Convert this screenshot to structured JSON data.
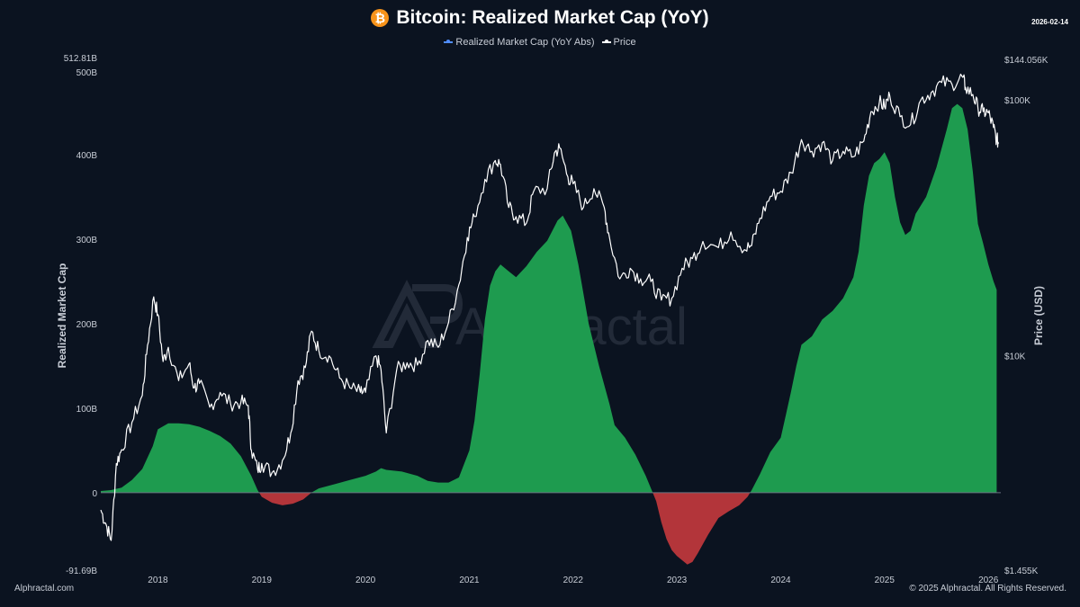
{
  "header": {
    "logo_glyph": "₿",
    "title": "Bitcoin: Realized Market Cap (YoY)",
    "date": "2026-02-14"
  },
  "legend": [
    {
      "label": "Realized Market Cap (YoY Abs)",
      "color": "#4f8cff"
    },
    {
      "label": "Price",
      "color": "#ffffff"
    }
  ],
  "watermark": {
    "text": "Alphractal",
    "icon_name": "alphractal-logo-icon"
  },
  "footer": {
    "left": "Alphractal.com",
    "right": "© 2025 Alphractal. All Rights Reserved."
  },
  "colors": {
    "background": "#0b1320",
    "positive_fill": "#1e9b4f",
    "negative_fill": "#b3353a",
    "price_line": "#ffffff",
    "axis_text": "#c8cdd6"
  },
  "chart_data": {
    "type": "area",
    "title": "Bitcoin: Realized Market Cap (YoY)",
    "ylabel_left": "Realized Market Cap",
    "ylabel_right": "Price (USD)",
    "left_axis": {
      "min": -91.69,
      "max": 512.81,
      "unit": "B",
      "ticks": [
        {
          "value": -91.69,
          "label": "-91.69B"
        },
        {
          "value": 0,
          "label": "0"
        },
        {
          "value": 100,
          "label": "100B"
        },
        {
          "value": 200,
          "label": "200B"
        },
        {
          "value": 300,
          "label": "300B"
        },
        {
          "value": 400,
          "label": "400B"
        },
        {
          "value": 500,
          "label": "500B"
        },
        {
          "value": 512.81,
          "label": "512.81B"
        }
      ]
    },
    "right_axis": {
      "scale": "log",
      "min": 1455,
      "max": 144056,
      "ticks": [
        {
          "value": 1455,
          "label": "$1.455K"
        },
        {
          "value": 10000,
          "label": "$10K"
        },
        {
          "value": 100000,
          "label": "$100K"
        },
        {
          "value": 144056,
          "label": "$144.056K"
        }
      ]
    },
    "x_axis": {
      "min": 2017.45,
      "max": 2026.12,
      "ticks": [
        {
          "value": 2018,
          "label": "2018"
        },
        {
          "value": 2019,
          "label": "2019"
        },
        {
          "value": 2020,
          "label": "2020"
        },
        {
          "value": 2021,
          "label": "2021"
        },
        {
          "value": 2022,
          "label": "2022"
        },
        {
          "value": 2023,
          "label": "2023"
        },
        {
          "value": 2024,
          "label": "2024"
        },
        {
          "value": 2025,
          "label": "2025"
        },
        {
          "value": 2026,
          "label": "2026"
        }
      ]
    },
    "grid": false,
    "legend_position": "top-center",
    "series": [
      {
        "name": "Realized Market Cap (YoY Abs)",
        "axis": "left",
        "points": [
          [
            2017.45,
            2
          ],
          [
            2017.55,
            3
          ],
          [
            2017.65,
            6
          ],
          [
            2017.75,
            15
          ],
          [
            2017.85,
            28
          ],
          [
            2017.95,
            55
          ],
          [
            2018.0,
            75
          ],
          [
            2018.1,
            82
          ],
          [
            2018.2,
            82
          ],
          [
            2018.3,
            81
          ],
          [
            2018.4,
            78
          ],
          [
            2018.5,
            73
          ],
          [
            2018.6,
            67
          ],
          [
            2018.7,
            58
          ],
          [
            2018.8,
            43
          ],
          [
            2018.9,
            20
          ],
          [
            2018.96,
            3
          ],
          [
            2019.0,
            -5
          ],
          [
            2019.1,
            -12
          ],
          [
            2019.2,
            -15
          ],
          [
            2019.3,
            -13
          ],
          [
            2019.4,
            -8
          ],
          [
            2019.48,
            0
          ],
          [
            2019.55,
            5
          ],
          [
            2019.7,
            10
          ],
          [
            2019.85,
            15
          ],
          [
            2020.0,
            20
          ],
          [
            2020.1,
            25
          ],
          [
            2020.15,
            29
          ],
          [
            2020.2,
            27
          ],
          [
            2020.35,
            25
          ],
          [
            2020.5,
            20
          ],
          [
            2020.6,
            14
          ],
          [
            2020.7,
            12
          ],
          [
            2020.8,
            12
          ],
          [
            2020.9,
            18
          ],
          [
            2021.0,
            50
          ],
          [
            2021.05,
            85
          ],
          [
            2021.1,
            140
          ],
          [
            2021.15,
            205
          ],
          [
            2021.2,
            245
          ],
          [
            2021.25,
            262
          ],
          [
            2021.3,
            270
          ],
          [
            2021.38,
            262
          ],
          [
            2021.45,
            255
          ],
          [
            2021.55,
            268
          ],
          [
            2021.65,
            285
          ],
          [
            2021.75,
            298
          ],
          [
            2021.85,
            322
          ],
          [
            2021.9,
            328
          ],
          [
            2021.98,
            310
          ],
          [
            2022.05,
            270
          ],
          [
            2022.15,
            200
          ],
          [
            2022.25,
            150
          ],
          [
            2022.35,
            105
          ],
          [
            2022.4,
            80
          ],
          [
            2022.5,
            65
          ],
          [
            2022.6,
            45
          ],
          [
            2022.7,
            20
          ],
          [
            2022.75,
            5
          ],
          [
            2022.8,
            -10
          ],
          [
            2022.85,
            -35
          ],
          [
            2022.9,
            -55
          ],
          [
            2022.95,
            -68
          ],
          [
            2023.0,
            -75
          ],
          [
            2023.05,
            -80
          ],
          [
            2023.1,
            -85
          ],
          [
            2023.15,
            -82
          ],
          [
            2023.2,
            -72
          ],
          [
            2023.3,
            -50
          ],
          [
            2023.4,
            -30
          ],
          [
            2023.5,
            -22
          ],
          [
            2023.6,
            -15
          ],
          [
            2023.68,
            -5
          ],
          [
            2023.72,
            3
          ],
          [
            2023.8,
            22
          ],
          [
            2023.9,
            48
          ],
          [
            2024.0,
            65
          ],
          [
            2024.05,
            92
          ],
          [
            2024.1,
            120
          ],
          [
            2024.15,
            150
          ],
          [
            2024.2,
            175
          ],
          [
            2024.3,
            185
          ],
          [
            2024.4,
            205
          ],
          [
            2024.5,
            215
          ],
          [
            2024.6,
            230
          ],
          [
            2024.7,
            255
          ],
          [
            2024.75,
            285
          ],
          [
            2024.8,
            340
          ],
          [
            2024.85,
            375
          ],
          [
            2024.9,
            390
          ],
          [
            2024.95,
            395
          ],
          [
            2025.0,
            403
          ],
          [
            2025.05,
            390
          ],
          [
            2025.1,
            350
          ],
          [
            2025.15,
            320
          ],
          [
            2025.2,
            305
          ],
          [
            2025.25,
            310
          ],
          [
            2025.3,
            330
          ],
          [
            2025.4,
            350
          ],
          [
            2025.5,
            385
          ],
          [
            2025.6,
            430
          ],
          [
            2025.65,
            455
          ],
          [
            2025.7,
            460
          ],
          [
            2025.75,
            455
          ],
          [
            2025.8,
            430
          ],
          [
            2025.85,
            380
          ],
          [
            2025.9,
            318
          ],
          [
            2025.95,
            295
          ],
          [
            2026.0,
            270
          ],
          [
            2026.05,
            250
          ],
          [
            2026.08,
            240
          ]
        ]
      },
      {
        "name": "Price",
        "axis": "right",
        "points": [
          [
            2017.45,
            2500
          ],
          [
            2017.5,
            2200
          ],
          [
            2017.55,
            1900
          ],
          [
            2017.6,
            3800
          ],
          [
            2017.65,
            4300
          ],
          [
            2017.75,
            5500
          ],
          [
            2017.85,
            7000
          ],
          [
            2017.9,
            11000
          ],
          [
            2017.96,
            17000
          ],
          [
            2018.0,
            14500
          ],
          [
            2018.05,
            9500
          ],
          [
            2018.1,
            10800
          ],
          [
            2018.2,
            8000
          ],
          [
            2018.3,
            9300
          ],
          [
            2018.35,
            7500
          ],
          [
            2018.4,
            7800
          ],
          [
            2018.5,
            6300
          ],
          [
            2018.6,
            7200
          ],
          [
            2018.7,
            6500
          ],
          [
            2018.8,
            6600
          ],
          [
            2018.87,
            6400
          ],
          [
            2018.9,
            4300
          ],
          [
            2018.96,
            3600
          ],
          [
            2019.0,
            3800
          ],
          [
            2019.1,
            3500
          ],
          [
            2019.2,
            3900
          ],
          [
            2019.28,
            5000
          ],
          [
            2019.35,
            8000
          ],
          [
            2019.42,
            9000
          ],
          [
            2019.48,
            12500
          ],
          [
            2019.55,
            10500
          ],
          [
            2019.65,
            10000
          ],
          [
            2019.75,
            8200
          ],
          [
            2019.85,
            7500
          ],
          [
            2019.95,
            7200
          ],
          [
            2020.0,
            7200
          ],
          [
            2020.1,
            10000
          ],
          [
            2020.15,
            8800
          ],
          [
            2020.2,
            5000
          ],
          [
            2020.3,
            8800
          ],
          [
            2020.4,
            9400
          ],
          [
            2020.5,
            9200
          ],
          [
            2020.6,
            11500
          ],
          [
            2020.7,
            10800
          ],
          [
            2020.8,
            13500
          ],
          [
            2020.9,
            19000
          ],
          [
            2020.98,
            29000
          ],
          [
            2021.05,
            35000
          ],
          [
            2021.15,
            49000
          ],
          [
            2021.25,
            58000
          ],
          [
            2021.3,
            56000
          ],
          [
            2021.38,
            38000
          ],
          [
            2021.45,
            35000
          ],
          [
            2021.55,
            33000
          ],
          [
            2021.62,
            44000
          ],
          [
            2021.75,
            45000
          ],
          [
            2021.82,
            62000
          ],
          [
            2021.87,
            65000
          ],
          [
            2021.95,
            50000
          ],
          [
            2022.0,
            47000
          ],
          [
            2022.1,
            38000
          ],
          [
            2022.2,
            45000
          ],
          [
            2022.3,
            38000
          ],
          [
            2022.35,
            29000
          ],
          [
            2022.45,
            20000
          ],
          [
            2022.55,
            22000
          ],
          [
            2022.65,
            20000
          ],
          [
            2022.75,
            19500
          ],
          [
            2022.85,
            16500
          ],
          [
            2022.95,
            16800
          ],
          [
            2023.05,
            22000
          ],
          [
            2023.15,
            24000
          ],
          [
            2023.25,
            28000
          ],
          [
            2023.4,
            26500
          ],
          [
            2023.52,
            30500
          ],
          [
            2023.65,
            26000
          ],
          [
            2023.72,
            27000
          ],
          [
            2023.8,
            34500
          ],
          [
            2023.9,
            42000
          ],
          [
            2024.0,
            44000
          ],
          [
            2024.1,
            52000
          ],
          [
            2024.2,
            70000
          ],
          [
            2024.3,
            63000
          ],
          [
            2024.4,
            68000
          ],
          [
            2024.5,
            58000
          ],
          [
            2024.6,
            63000
          ],
          [
            2024.7,
            60000
          ],
          [
            2024.8,
            69000
          ],
          [
            2024.87,
            90000
          ],
          [
            2024.95,
            98000
          ],
          [
            2025.0,
            94000
          ],
          [
            2025.05,
            104000
          ],
          [
            2025.15,
            86000
          ],
          [
            2025.25,
            80000
          ],
          [
            2025.35,
            100000
          ],
          [
            2025.45,
            107000
          ],
          [
            2025.55,
            117000
          ],
          [
            2025.65,
            115000
          ],
          [
            2025.75,
            123000
          ],
          [
            2025.78,
            112000
          ],
          [
            2025.85,
            105000
          ],
          [
            2025.9,
            93000
          ],
          [
            2025.95,
            90000
          ],
          [
            2026.0,
            89000
          ],
          [
            2026.05,
            78000
          ],
          [
            2026.08,
            70000
          ],
          [
            2026.1,
            68000
          ]
        ]
      }
    ]
  }
}
